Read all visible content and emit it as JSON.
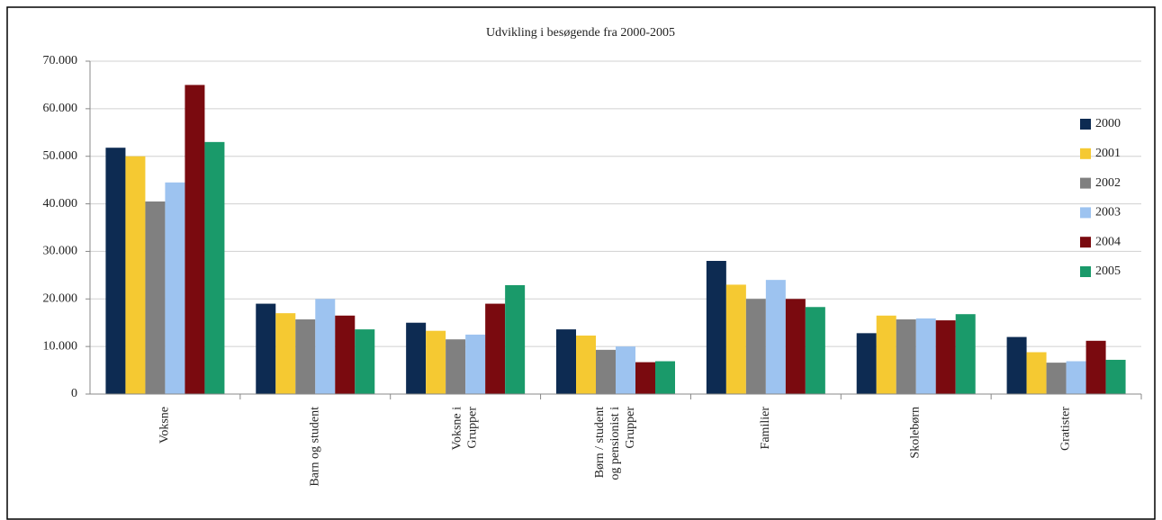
{
  "chart_data": {
    "type": "bar",
    "title": "Udvikling i besøgende fra 2000-2005",
    "categories": [
      "Voksne",
      "Barn og student",
      "Voksne i\nGrupper",
      "Børn / student\nog pensionist i\nGrupper",
      "Familier",
      "Skolebørn",
      "Gratister"
    ],
    "series": [
      {
        "name": "2000",
        "color": "#0d2b52",
        "values": [
          51800,
          19000,
          15000,
          13600,
          28000,
          12800,
          12000
        ]
      },
      {
        "name": "2001",
        "color": "#f5c932",
        "values": [
          50000,
          17000,
          13300,
          12300,
          23000,
          16500,
          8800
        ]
      },
      {
        "name": "2002",
        "color": "#808080",
        "values": [
          40500,
          15700,
          11500,
          9300,
          20000,
          15700,
          6600
        ]
      },
      {
        "name": "2003",
        "color": "#9dc3f0",
        "values": [
          44500,
          20000,
          12500,
          10000,
          24000,
          15900,
          6900
        ]
      },
      {
        "name": "2004",
        "color": "#7a0a0f",
        "values": [
          65000,
          16500,
          19000,
          6700,
          20000,
          15500,
          11200
        ]
      },
      {
        "name": "2005",
        "color": "#1a9a6a",
        "values": [
          53000,
          13600,
          22900,
          6900,
          18300,
          16800,
          7200
        ]
      }
    ],
    "ylim": [
      0,
      70000
    ],
    "yticks": [
      0,
      {
        "value": 10000,
        "label": "10.000"
      },
      {
        "value": 20000,
        "label": "20.000"
      },
      {
        "value": 30000,
        "label": "30.000"
      },
      {
        "value": 40000,
        "label": "40.000"
      },
      {
        "value": 50000,
        "label": "50.000"
      },
      {
        "value": 60000,
        "label": "60.000"
      },
      {
        "value": 70000,
        "label": "70.000"
      }
    ],
    "grid": true,
    "legend": "right"
  }
}
